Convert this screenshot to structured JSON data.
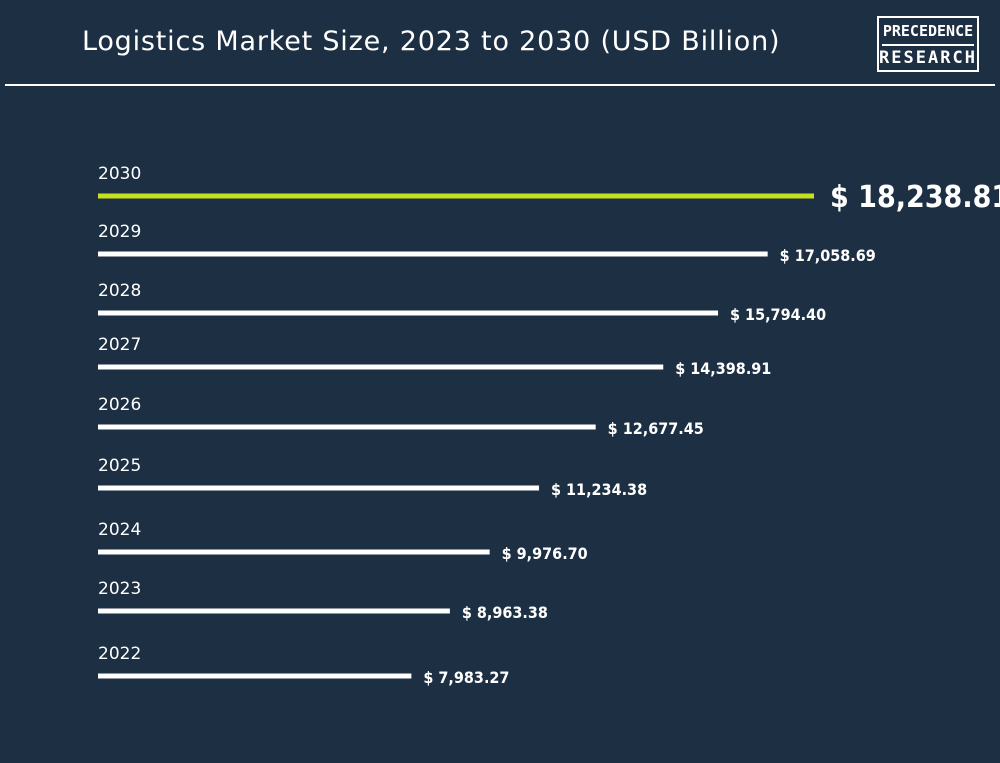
{
  "header": {
    "title": "Logistics Market Size, 2023 to 2030 (USD Billion)",
    "logo_line1": "PRECEDENCE",
    "logo_line2": "RESEARCH"
  },
  "colors": {
    "background": "#1d2f43",
    "bar": "#ffffff",
    "highlight_bar": "#c6e21c",
    "text": "#ffffff"
  },
  "chart_data": {
    "type": "bar",
    "orientation": "horizontal",
    "title": "Logistics Market Size, 2023 to 2030 (USD Billion)",
    "categories": [
      "2030",
      "2029",
      "2028",
      "2027",
      "2026",
      "2025",
      "2024",
      "2023",
      "2022"
    ],
    "values": [
      18238.81,
      17058.69,
      15794.4,
      14398.91,
      12677.45,
      11234.38,
      9976.7,
      8963.38,
      7983.27
    ],
    "value_labels": [
      "$ 18,238.81",
      "$ 17,058.69",
      "$ 15,794.40",
      "$ 14,398.91",
      "$ 12,677.45",
      "$ 11,234.38",
      "$ 9,976.70",
      "$ 8,963.38",
      "$ 7,983.27"
    ],
    "highlight_category": "2030",
    "grid": false,
    "legend": "none"
  }
}
